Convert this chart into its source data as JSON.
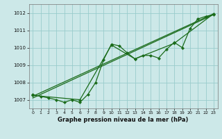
{
  "title": "Graphe pression niveau de la mer (hPa)",
  "bg_color": "#cce8e8",
  "grid_color": "#99cccc",
  "line_color": "#1a6b1a",
  "marker_color": "#1a6b1a",
  "xlim": [
    -0.5,
    23.5
  ],
  "ylim": [
    1006.5,
    1012.5
  ],
  "yticks": [
    1007,
    1008,
    1009,
    1010,
    1011,
    1012
  ],
  "xticks": [
    0,
    1,
    2,
    3,
    4,
    5,
    6,
    7,
    8,
    9,
    10,
    11,
    12,
    13,
    14,
    15,
    16,
    17,
    18,
    19,
    20,
    21,
    22,
    23
  ],
  "series1": [
    1007.3,
    1007.2,
    1007.1,
    1007.0,
    1006.85,
    1007.0,
    1006.85,
    1007.3,
    1008.0,
    1009.3,
    1010.2,
    1010.1,
    1009.7,
    1009.35,
    1009.55,
    1009.55,
    1009.4,
    1009.9,
    1010.3,
    1010.0,
    1011.1,
    1011.65,
    1011.8,
    1011.9
  ],
  "series2_x": [
    0,
    23
  ],
  "series2_y": [
    1007.1,
    1011.9
  ],
  "series3_x": [
    0,
    23
  ],
  "series3_y": [
    1007.2,
    1011.95
  ],
  "series4_x": [
    0,
    6,
    10,
    13,
    18,
    23
  ],
  "series4_y": [
    1007.25,
    1007.0,
    1010.15,
    1009.35,
    1010.25,
    1011.95
  ]
}
